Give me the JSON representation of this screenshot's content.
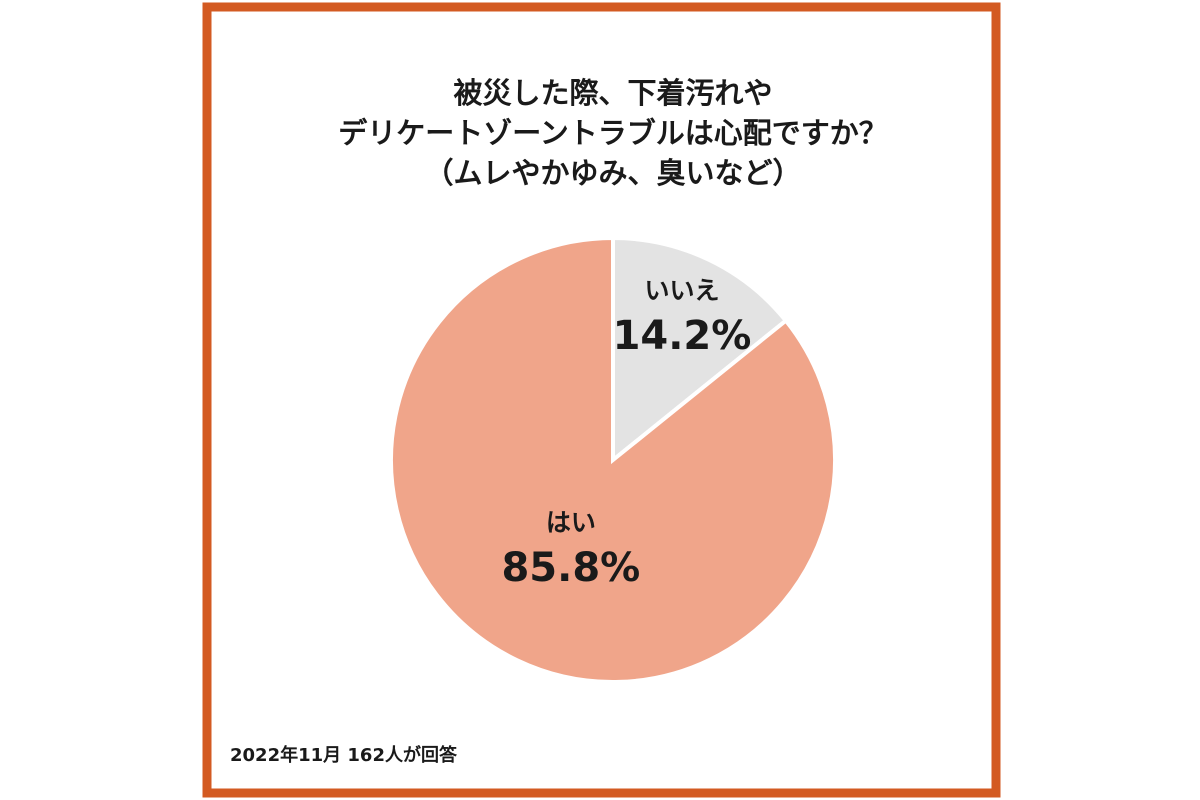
{
  "chart_data": {
    "type": "pie",
    "title": [
      "被災した際、下着汚れや",
      "デリケートゾーントラブルは心配ですか？",
      "（ムレやかゆみ、臭いなど）"
    ],
    "categories": [
      "いいえ",
      "はい"
    ],
    "values": [
      14.2,
      85.8
    ],
    "value_labels": [
      "14.2%",
      "85.8%"
    ],
    "colors": [
      "#e3e3e3",
      "#f0a58a"
    ],
    "caption": "2022年11月 162人が回答"
  }
}
